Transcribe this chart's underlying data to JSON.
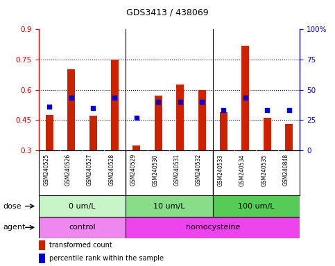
{
  "title": "GDS3413 / 438069",
  "samples": [
    "GSM240525",
    "GSM240526",
    "GSM240527",
    "GSM240528",
    "GSM240529",
    "GSM240530",
    "GSM240531",
    "GSM240532",
    "GSM240533",
    "GSM240534",
    "GSM240535",
    "GSM240848"
  ],
  "red_values": [
    0.475,
    0.7,
    0.47,
    0.75,
    0.325,
    0.57,
    0.625,
    0.6,
    0.49,
    0.82,
    0.46,
    0.43
  ],
  "blue_values": [
    0.515,
    0.56,
    0.51,
    0.56,
    0.46,
    0.54,
    0.54,
    0.54,
    0.5,
    0.56,
    0.5,
    0.5
  ],
  "ylim_left": [
    0.3,
    0.9
  ],
  "ylim_right": [
    0,
    100
  ],
  "yticks_left": [
    0.3,
    0.45,
    0.6,
    0.75,
    0.9
  ],
  "yticks_right": [
    0,
    25,
    50,
    75,
    100
  ],
  "ytick_labels_left": [
    "0.3",
    "0.45",
    "0.6",
    "0.75",
    "0.9"
  ],
  "ytick_labels_right": [
    "0",
    "25",
    "50",
    "75",
    "100%"
  ],
  "left_color": "#cc0000",
  "right_color": "#0000cc",
  "bar_color": "#cc2200",
  "dot_color": "#0000cc",
  "dose_groups": [
    {
      "label": "0 um/L",
      "start": 0,
      "end": 3,
      "color": "#c8f5c8"
    },
    {
      "label": "10 um/L",
      "start": 4,
      "end": 7,
      "color": "#88dd88"
    },
    {
      "label": "100 um/L",
      "start": 8,
      "end": 11,
      "color": "#55cc55"
    }
  ],
  "agent_groups": [
    {
      "label": "control",
      "start": 0,
      "end": 3,
      "color": "#ee88ee"
    },
    {
      "label": "homocysteine",
      "start": 4,
      "end": 11,
      "color": "#ee44ee"
    }
  ],
  "legend_red_label": "transformed count",
  "legend_blue_label": "percentile rank within the sample",
  "dose_label": "dose",
  "agent_label": "agent",
  "bar_bottom": 0.3,
  "background_color": "#ffffff",
  "tick_area_color": "#cccccc",
  "group_boundary_cols": [
    3,
    7
  ],
  "n_samples": 12
}
